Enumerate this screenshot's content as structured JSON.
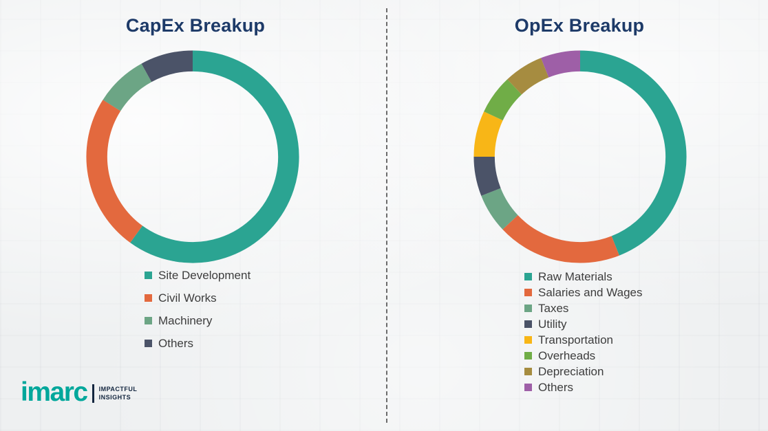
{
  "chart_data": [
    {
      "type": "pie",
      "variant": "donut",
      "title": "CapEx Breakup",
      "labels": [
        "Site Development",
        "Civil Works",
        "Machinery",
        "Others"
      ],
      "values": [
        60,
        24,
        8,
        8
      ],
      "colors": [
        "#2ba492",
        "#e3693e",
        "#6ca585",
        "#4b5368"
      ],
      "legend_position": "bottom"
    },
    {
      "type": "pie",
      "variant": "donut",
      "title": "OpEx Breakup",
      "labels": [
        "Raw Materials",
        "Salaries and Wages",
        "Taxes",
        "Utility",
        "Transportation",
        "Overheads",
        "Depreciation",
        "Others"
      ],
      "values": [
        44,
        19,
        6,
        6,
        7,
        6,
        6,
        6
      ],
      "colors": [
        "#2ba492",
        "#e3693e",
        "#6ca585",
        "#4b5368",
        "#f8b617",
        "#70ad47",
        "#a68c40",
        "#9e5fa7"
      ],
      "legend_position": "bottom"
    }
  ],
  "logo": {
    "brand": "imarc",
    "tagline_line1": "IMPACTFUL",
    "tagline_line2": "INSIGHTS"
  }
}
